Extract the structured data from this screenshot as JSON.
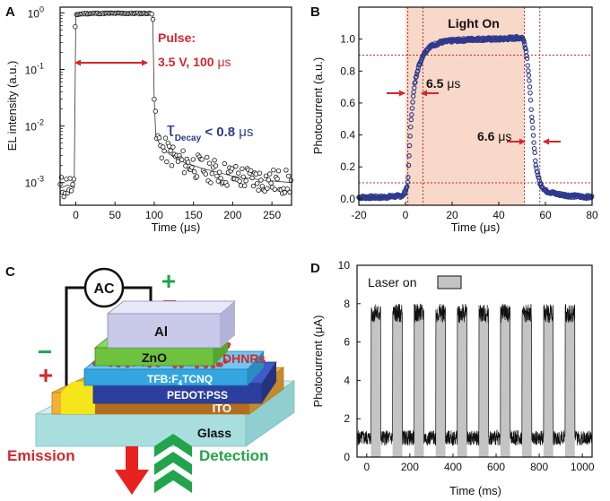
{
  "panels": {
    "a": {
      "letter": "A"
    },
    "b": {
      "letter": "B"
    },
    "c": {
      "letter": "C"
    },
    "d": {
      "letter": "D"
    }
  },
  "colors": {
    "black": "#111111",
    "red": "#d6262b",
    "blue": "#2e3a8c",
    "light_on_fill": "#f8d8c8",
    "gray_bar": "#c4c4c4",
    "al": "#c9c9ea",
    "zno": "#6ec23e",
    "tfb": "#33a6e0",
    "pedot": "#2c3f9e",
    "ito": "#b36d1e",
    "gold": "#f2b035",
    "glass": "#a9dede",
    "green": "#21a44b"
  },
  "chart_data": [
    {
      "panel": "A",
      "type": "line",
      "xlabel": "Time (μs)",
      "ylabel": "EL intensity (a.u.)",
      "xlim": [
        -20,
        275
      ],
      "ylim_log10": [
        -3.4,
        0.1
      ],
      "y_scale": "log",
      "xticks": [
        0,
        50,
        100,
        150,
        200,
        250
      ],
      "yticks_log10": [
        0,
        -1,
        -2,
        -3
      ],
      "ytick_labels": [
        [
          "10",
          "0"
        ],
        [
          "10",
          "-1"
        ],
        [
          "10",
          "-2"
        ],
        [
          "10",
          "-3"
        ]
      ],
      "series": [
        {
          "points": [
            [
              -20,
              0.0008
            ],
            [
              -10,
              0.0009
            ],
            [
              -2,
              0.0008
            ],
            [
              0,
              0.93
            ],
            [
              10,
              0.97
            ],
            [
              30,
              0.98
            ],
            [
              50,
              0.98
            ],
            [
              70,
              0.98
            ],
            [
              90,
              0.98
            ],
            [
              98,
              0.97
            ],
            [
              100,
              0.03
            ],
            [
              102,
              0.0065
            ],
            [
              110,
              0.004
            ],
            [
              130,
              0.0025
            ],
            [
              160,
              0.0018
            ],
            [
              200,
              0.0013
            ],
            [
              240,
              0.0011
            ],
            [
              275,
              0.001
            ]
          ]
        }
      ],
      "annotations": {
        "pulse_line1": "Pulse:",
        "pulse_line2_text": "3.5 V, 100 ",
        "pulse_line2_unit": "μs",
        "tau_symbol": "τ",
        "tau_sub": "Decay",
        "tau_value_text": " < 0.8 ",
        "tau_value_unit": "μs"
      }
    },
    {
      "panel": "B",
      "type": "line",
      "xlabel": "Time (μs)",
      "ylabel": "Photocurrent (a.u.)",
      "xlim": [
        -20,
        80
      ],
      "ylim": [
        -0.04,
        1.2
      ],
      "xticks": [
        -20,
        0,
        20,
        40,
        60,
        80
      ],
      "yticks": [
        0.0,
        0.2,
        0.4,
        0.6,
        0.8,
        1.0
      ],
      "ytick_labels": [
        "0.0",
        "0.2",
        "0.4",
        "0.6",
        "0.8",
        "1.0"
      ],
      "light_on_range": [
        0,
        51
      ],
      "threshold_lines": [
        0.1,
        0.9
      ],
      "marker_lines_x": [
        1,
        7.5,
        51,
        57.6
      ],
      "series": [
        {
          "points": [
            [
              -20,
              0.01
            ],
            [
              -10,
              0.01
            ],
            [
              -1,
              0.02
            ],
            [
              0,
              0.05
            ],
            [
              1,
              0.1
            ],
            [
              2,
              0.4
            ],
            [
              3,
              0.6
            ],
            [
              4,
              0.72
            ],
            [
              5,
              0.8
            ],
            [
              7.5,
              0.9
            ],
            [
              10,
              0.95
            ],
            [
              15,
              0.98
            ],
            [
              20,
              0.99
            ],
            [
              30,
              1.0
            ],
            [
              40,
              1.0
            ],
            [
              50,
              1.01
            ],
            [
              51,
              0.98
            ],
            [
              52,
              0.9
            ],
            [
              53,
              0.75
            ],
            [
              54,
              0.55
            ],
            [
              55,
              0.35
            ],
            [
              56,
              0.2
            ],
            [
              57.6,
              0.1
            ],
            [
              60,
              0.05
            ],
            [
              65,
              0.03
            ],
            [
              70,
              0.02
            ],
            [
              80,
              0.01
            ]
          ]
        }
      ],
      "annotations": {
        "light_on": "Light On",
        "rise_text": "6.5 ",
        "rise_unit": "μs",
        "fall_text": "6.6 ",
        "fall_unit": "μs"
      }
    },
    {
      "panel": "D",
      "type": "line",
      "xlabel": "Time (ms)",
      "ylabel": "Photocurrent (μA)",
      "xlim": [
        -45,
        1045
      ],
      "ylim": [
        0,
        10
      ],
      "xticks": [
        0,
        200,
        400,
        600,
        800,
        1000
      ],
      "yticks": [
        0,
        2,
        4,
        6,
        8,
        10
      ],
      "on_intervals": [
        [
          20,
          65
        ],
        [
          120,
          165
        ],
        [
          220,
          265
        ],
        [
          320,
          365
        ],
        [
          420,
          465
        ],
        [
          520,
          565
        ],
        [
          620,
          665
        ],
        [
          720,
          765
        ],
        [
          820,
          865
        ],
        [
          920,
          965
        ]
      ],
      "off_level": 1.0,
      "on_level": 7.5,
      "legend": "Laser on"
    }
  ],
  "device": {
    "ac": "AC",
    "plus": "+",
    "minus": "−",
    "layers": {
      "al": "Al",
      "zno": "ZnO",
      "tfb": "TFB:F",
      "tfb_sub": "4",
      "tfb_rest": "TCNQ",
      "pedot": "PEDOT:PSS",
      "ito": "ITO",
      "glass": "Glass"
    },
    "dhnrs": "DHNRs",
    "emission": "Emission",
    "detection": "Detection"
  }
}
